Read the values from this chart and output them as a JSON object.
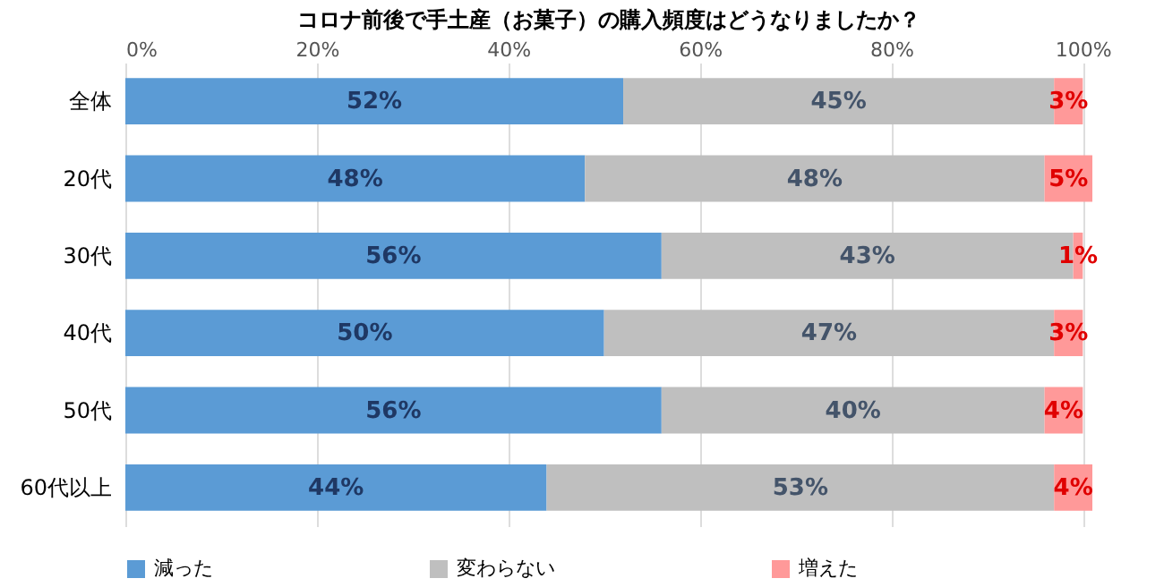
{
  "chart_data": {
    "type": "bar",
    "orientation": "horizontal",
    "stacked": true,
    "title": "コロナ前後で手土産（お菓子）の購入頻度はどうなりましたか？",
    "categories": [
      "全体",
      "20代",
      "30代",
      "40代",
      "50代",
      "60代以上"
    ],
    "series": [
      {
        "name": "減った",
        "color": "#5b9bd5",
        "values": [
          52,
          48,
          56,
          50,
          56,
          44
        ],
        "value_labels": [
          "52%",
          "48%",
          "56%",
          "50%",
          "56%",
          "44%"
        ]
      },
      {
        "name": "変わらない",
        "color": "#bfbfbf",
        "values": [
          45,
          48,
          43,
          47,
          40,
          53
        ],
        "value_labels": [
          "45%",
          "48%",
          "43%",
          "47%",
          "40%",
          "53%"
        ]
      },
      {
        "name": "増えた",
        "color": "#ff9999",
        "values": [
          3,
          5,
          1,
          3,
          4,
          4
        ],
        "value_labels": [
          "3%",
          "5%",
          "1%",
          "3%",
          "4%",
          "4%"
        ]
      }
    ],
    "xlim": [
      0,
      101
    ],
    "xticks": [
      {
        "value": 0,
        "label": "0%"
      },
      {
        "value": 20,
        "label": "20%"
      },
      {
        "value": 40,
        "label": "40%"
      },
      {
        "value": 60,
        "label": "60%"
      },
      {
        "value": 80,
        "label": "80%"
      },
      {
        "value": 100,
        "label": "100%"
      }
    ],
    "grid": "x",
    "legend": "bottom"
  }
}
